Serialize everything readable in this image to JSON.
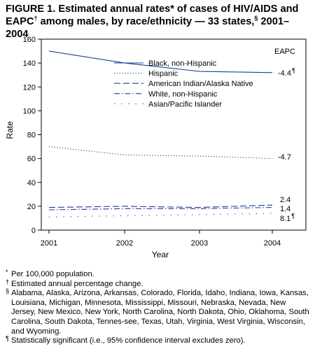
{
  "figure": {
    "title_line1": "FIGURE 1. Estimated annual rates* of cases of HIV/AIDS and",
    "title_line2a": "EAPC",
    "title_mark1": "†",
    "title_line2b": " among males, by race/ethnicity — 33 states,",
    "title_mark2": "§",
    "title_line2c": " 2001–2004"
  },
  "chart_data": {
    "type": "line",
    "x": [
      2001,
      2002,
      2003,
      2004
    ],
    "xlabel": "Year",
    "ylabel": "Rate",
    "ylim": [
      0,
      160
    ],
    "yticks": [
      0,
      20,
      40,
      60,
      80,
      100,
      120,
      140,
      160
    ],
    "grid": false,
    "legend_position": "center",
    "eapc_header": "EAPC",
    "series": [
      {
        "name": "Black, non-Hispanic",
        "values": [
          150,
          140,
          133,
          132
        ],
        "style": "solid",
        "color": "#1a3f9c",
        "eapc": "-4.4",
        "eapc_mark": "¶"
      },
      {
        "name": "Hispanic",
        "values": [
          70,
          63,
          62,
          60
        ],
        "style": "dotted",
        "color": "#1a3f9c",
        "eapc": "-4.7",
        "eapc_mark": ""
      },
      {
        "name": "American Indian/Alaska Native",
        "values": [
          19,
          20,
          19,
          21
        ],
        "style": "dashed",
        "color": "#1a3f9c",
        "eapc": "2.4",
        "eapc_mark": ""
      },
      {
        "name": "White, non-Hispanic",
        "values": [
          17,
          18,
          18,
          19
        ],
        "style": "dashdot",
        "color": "#1a3f9c",
        "eapc": "1.4",
        "eapc_mark": ""
      },
      {
        "name": "Asian/Pacific Islander",
        "values": [
          11,
          12,
          13,
          14
        ],
        "style": "sparse-dot",
        "color": "#1a3f9c",
        "eapc": "8.1",
        "eapc_mark": "¶"
      }
    ]
  },
  "footnotes": [
    {
      "symbol": "*",
      "text": "Per 100,000 population."
    },
    {
      "symbol": "†",
      "text": "Estimated annual percentage change."
    },
    {
      "symbol": "§",
      "text": "Alabama, Alaska, Arizona, Arkansas, Colorado, Florida, Idaho, Indiana, Iowa, Kansas, Louisiana, Michigan, Minnesota, Mississippi, Missouri, Nebraska, Nevada, New Jersey, New Mexico, New York, North Carolina, North Dakota, Ohio, Oklahoma, South Carolina, South Dakota, Tennes-see, Texas, Utah, Virginia, West Virginia, Wisconsin, and Wyoming."
    },
    {
      "symbol": "¶",
      "text": "Statistically significant (i.e., 95% confidence interval excludes zero)."
    }
  ]
}
